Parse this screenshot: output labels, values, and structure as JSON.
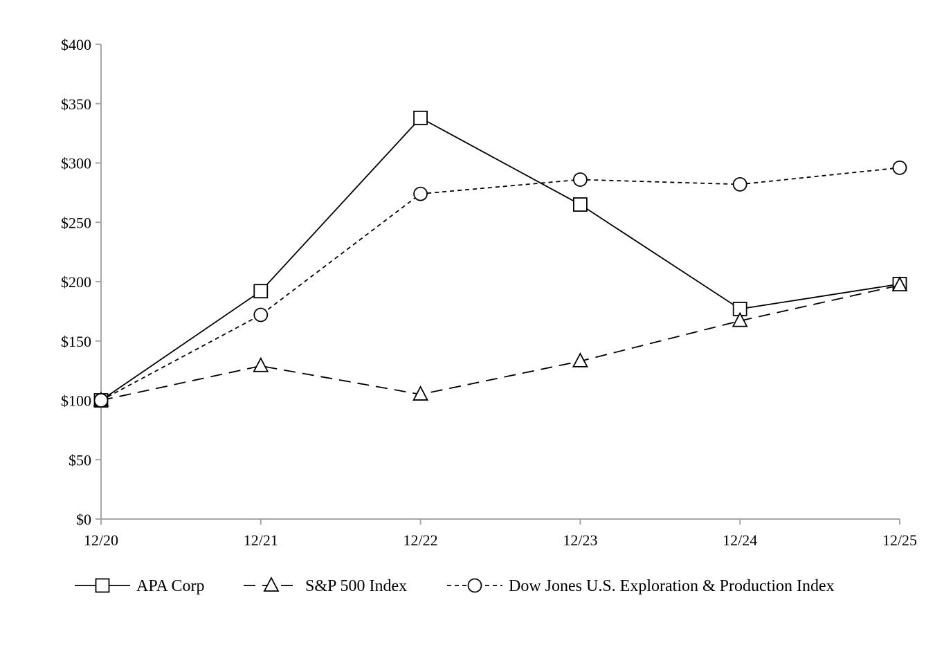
{
  "chart_data": {
    "type": "line",
    "title": "",
    "xlabel": "",
    "ylabel": "",
    "categories": [
      "12/20",
      "12/21",
      "12/22",
      "12/23",
      "12/24",
      "12/25"
    ],
    "ylim": [
      0,
      400
    ],
    "yticks": [
      0,
      50,
      100,
      150,
      200,
      250,
      300,
      350,
      400
    ],
    "ytick_labels": [
      "$0",
      "$50",
      "$100",
      "$150",
      "$200",
      "$250",
      "$300",
      "$350",
      "$400"
    ],
    "grid": false,
    "legend_position": "bottom",
    "series": [
      {
        "name": "APA Corp",
        "values": [
          100,
          192,
          338,
          265,
          177,
          198
        ],
        "marker": "square",
        "line_style": "solid",
        "color": "#000000"
      },
      {
        "name": "S&P 500 Index",
        "values": [
          100,
          129,
          105,
          133,
          167,
          197
        ],
        "marker": "triangle",
        "line_style": "long-dash",
        "color": "#000000"
      },
      {
        "name": "Dow Jones U.S. Exploration & Production Index",
        "values": [
          100,
          172,
          274,
          286,
          282,
          296
        ],
        "marker": "circle",
        "line_style": "short-dash",
        "color": "#000000"
      }
    ]
  }
}
